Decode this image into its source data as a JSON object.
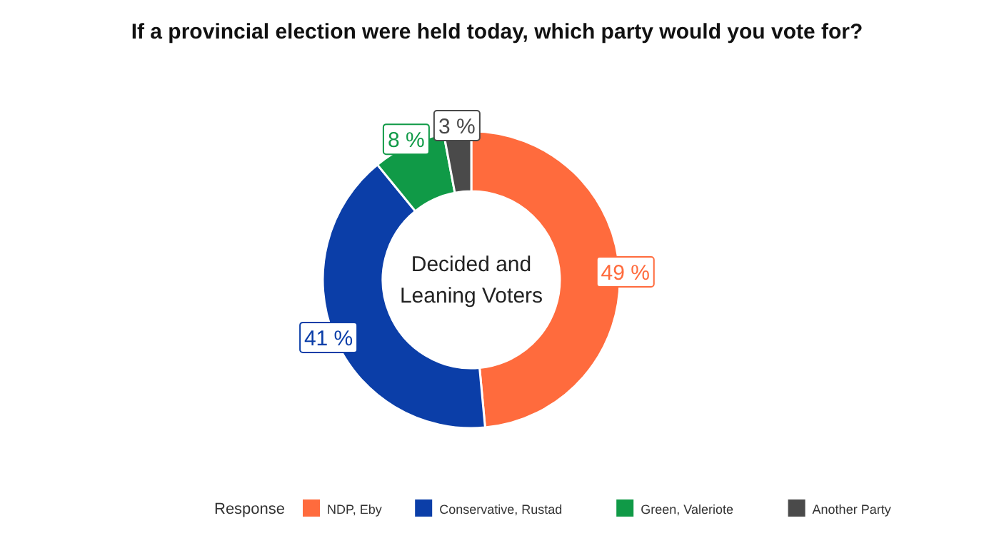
{
  "chart_data": {
    "type": "donut",
    "title": "If a provincial election were held today, which party would you vote for?",
    "categories": [
      "NDP, Eby",
      "Conservative, Rustad",
      "Green, Valeriote",
      "Another Party"
    ],
    "values": [
      49,
      41,
      8,
      3
    ],
    "colors": [
      "#ff6b3d",
      "#0b3ea8",
      "#109a47",
      "#4a4a4a"
    ],
    "value_labels": [
      "49 %",
      "41 %",
      "8 %",
      "3 %"
    ],
    "annotations": [
      "Decided and Leaning Voters"
    ],
    "legend_title": "Response",
    "legend": "bottom"
  }
}
